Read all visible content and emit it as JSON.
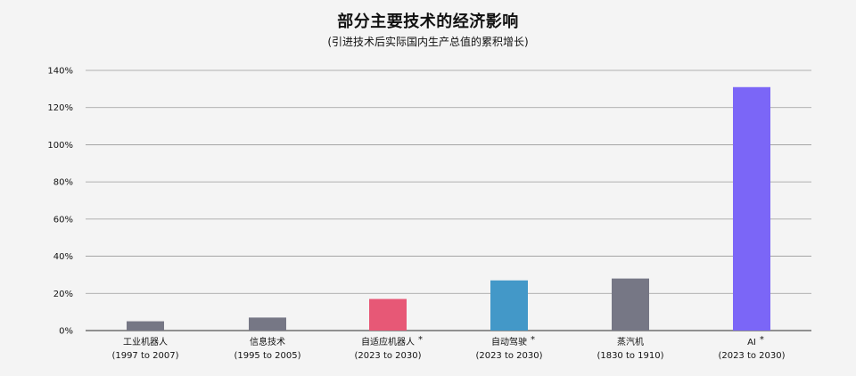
{
  "chart_data": {
    "type": "bar",
    "title": "部分主要技术的经济影响",
    "subtitle": "(引进技术后实际国内生产总值的累积增长)",
    "xlabel": "",
    "ylabel": "",
    "ylim": [
      0,
      140
    ],
    "yticks": [
      "0%",
      "20%",
      "40%",
      "60%",
      "80%",
      "100%",
      "120%",
      "140%"
    ],
    "grid": true,
    "categories": [
      {
        "name": "工业机器人",
        "years": "(1997 to 2007)",
        "star": ""
      },
      {
        "name": "信息技术",
        "years": "(1995 to 2005)",
        "star": ""
      },
      {
        "name": "自适应机器人",
        "years": "(2023 to 2030)",
        "star": "*"
      },
      {
        "name": "自动驾驶",
        "years": "(2023 to 2030)",
        "star": "*"
      },
      {
        "name": "蒸汽机",
        "years": "(1830 to 1910)",
        "star": ""
      },
      {
        "name": "AI",
        "years": "(2023 to 2030)",
        "star": "*"
      }
    ],
    "values": [
      5,
      7,
      17,
      27,
      28,
      131
    ],
    "colors": [
      "#767785",
      "#767785",
      "#e75876",
      "#4398c8",
      "#767785",
      "#7b66f7"
    ]
  }
}
